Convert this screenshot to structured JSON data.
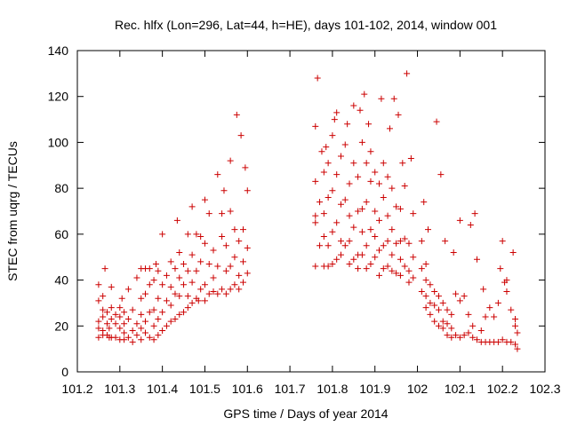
{
  "chart_data": {
    "type": "scatter",
    "title": "Rec. hlfx (Lon=296, Lat=44, h=HE), days 101-102, 2014, window 001",
    "xlabel": "GPS time / Days of year 2014",
    "ylabel": "STEC from uqrg / TECUs",
    "xlim": [
      101.2,
      102.3
    ],
    "ylim": [
      0,
      140
    ],
    "xticks": [
      "101.2",
      "101.3",
      "101.4",
      "101.5",
      "101.6",
      "101.7",
      "101.8",
      "101.9",
      "102",
      "102.1",
      "102.2",
      "102.3"
    ],
    "yticks": [
      "0",
      "20",
      "40",
      "60",
      "80",
      "100",
      "120",
      "140"
    ],
    "grid": false,
    "legend": "none",
    "marker": "+",
    "color": "#cc0000",
    "points": [
      [
        101.25,
        15
      ],
      [
        101.25,
        19
      ],
      [
        101.25,
        22
      ],
      [
        101.25,
        31
      ],
      [
        101.25,
        38
      ],
      [
        101.26,
        16
      ],
      [
        101.26,
        18
      ],
      [
        101.26,
        24
      ],
      [
        101.26,
        27
      ],
      [
        101.26,
        33
      ],
      [
        101.265,
        45
      ],
      [
        101.27,
        16
      ],
      [
        101.27,
        21
      ],
      [
        101.27,
        26
      ],
      [
        101.275,
        15
      ],
      [
        101.275,
        19
      ],
      [
        101.28,
        15
      ],
      [
        101.28,
        23
      ],
      [
        101.28,
        28
      ],
      [
        101.28,
        37
      ],
      [
        101.29,
        15
      ],
      [
        101.29,
        21
      ],
      [
        101.29,
        25
      ],
      [
        101.3,
        14
      ],
      [
        101.3,
        19
      ],
      [
        101.3,
        24
      ],
      [
        101.3,
        28
      ],
      [
        101.305,
        32
      ],
      [
        101.31,
        14
      ],
      [
        101.31,
        17
      ],
      [
        101.31,
        21
      ],
      [
        101.31,
        26
      ],
      [
        101.32,
        15
      ],
      [
        101.32,
        23
      ],
      [
        101.32,
        36
      ],
      [
        101.33,
        13
      ],
      [
        101.33,
        18
      ],
      [
        101.33,
        27
      ],
      [
        101.34,
        16
      ],
      [
        101.34,
        21
      ],
      [
        101.34,
        41
      ],
      [
        101.35,
        14
      ],
      [
        101.35,
        19
      ],
      [
        101.35,
        25
      ],
      [
        101.35,
        32
      ],
      [
        101.35,
        45
      ],
      [
        101.36,
        17
      ],
      [
        101.36,
        22
      ],
      [
        101.36,
        34
      ],
      [
        101.36,
        45
      ],
      [
        101.37,
        15
      ],
      [
        101.37,
        26
      ],
      [
        101.37,
        38
      ],
      [
        101.37,
        45
      ],
      [
        101.38,
        14
      ],
      [
        101.38,
        20
      ],
      [
        101.38,
        27
      ],
      [
        101.38,
        40
      ],
      [
        101.385,
        47
      ],
      [
        101.39,
        16
      ],
      [
        101.39,
        23
      ],
      [
        101.39,
        32
      ],
      [
        101.39,
        44
      ],
      [
        101.4,
        18
      ],
      [
        101.4,
        26
      ],
      [
        101.4,
        38
      ],
      [
        101.4,
        60
      ],
      [
        101.41,
        20
      ],
      [
        101.41,
        31
      ],
      [
        101.41,
        42
      ],
      [
        101.42,
        22
      ],
      [
        101.42,
        29
      ],
      [
        101.42,
        37
      ],
      [
        101.42,
        48
      ],
      [
        101.43,
        23
      ],
      [
        101.43,
        34
      ],
      [
        101.43,
        45
      ],
      [
        101.435,
        66
      ],
      [
        101.44,
        25
      ],
      [
        101.44,
        33
      ],
      [
        101.44,
        41
      ],
      [
        101.44,
        52
      ],
      [
        101.45,
        26
      ],
      [
        101.45,
        38
      ],
      [
        101.45,
        47
      ],
      [
        101.46,
        28
      ],
      [
        101.46,
        33
      ],
      [
        101.46,
        44
      ],
      [
        101.46,
        60
      ],
      [
        101.47,
        30
      ],
      [
        101.47,
        39
      ],
      [
        101.47,
        51
      ],
      [
        101.47,
        72
      ],
      [
        101.48,
        32
      ],
      [
        101.48,
        44
      ],
      [
        101.48,
        60
      ],
      [
        101.485,
        31
      ],
      [
        101.49,
        36
      ],
      [
        101.49,
        48
      ],
      [
        101.49,
        59
      ],
      [
        101.5,
        31
      ],
      [
        101.5,
        38
      ],
      [
        101.5,
        56
      ],
      [
        101.5,
        75
      ],
      [
        101.51,
        34
      ],
      [
        101.51,
        47
      ],
      [
        101.51,
        69
      ],
      [
        101.52,
        35
      ],
      [
        101.52,
        41
      ],
      [
        101.52,
        53
      ],
      [
        101.53,
        34
      ],
      [
        101.53,
        46
      ],
      [
        101.53,
        86
      ],
      [
        101.54,
        36
      ],
      [
        101.54,
        59
      ],
      [
        101.54,
        69
      ],
      [
        101.545,
        79
      ],
      [
        101.55,
        34
      ],
      [
        101.55,
        44
      ],
      [
        101.55,
        55
      ],
      [
        101.56,
        36
      ],
      [
        101.56,
        46
      ],
      [
        101.56,
        70
      ],
      [
        101.56,
        92
      ],
      [
        101.57,
        38
      ],
      [
        101.57,
        50
      ],
      [
        101.57,
        62
      ],
      [
        101.575,
        112
      ],
      [
        101.58,
        36
      ],
      [
        101.58,
        42
      ],
      [
        101.58,
        57
      ],
      [
        101.585,
        103
      ],
      [
        101.59,
        39
      ],
      [
        101.59,
        48
      ],
      [
        101.59,
        62
      ],
      [
        101.595,
        89
      ],
      [
        101.6,
        43
      ],
      [
        101.6,
        54
      ],
      [
        101.6,
        79
      ],
      [
        101.76,
        46
      ],
      [
        101.76,
        65
      ],
      [
        101.76,
        68
      ],
      [
        101.76,
        83
      ],
      [
        101.76,
        107
      ],
      [
        101.765,
        128
      ],
      [
        101.77,
        55
      ],
      [
        101.77,
        74
      ],
      [
        101.775,
        96
      ],
      [
        101.78,
        46
      ],
      [
        101.78,
        59
      ],
      [
        101.78,
        69
      ],
      [
        101.78,
        87
      ],
      [
        101.785,
        98
      ],
      [
        101.79,
        46
      ],
      [
        101.79,
        55
      ],
      [
        101.79,
        76
      ],
      [
        101.79,
        91
      ],
      [
        101.8,
        47
      ],
      [
        101.8,
        61
      ],
      [
        101.8,
        79
      ],
      [
        101.8,
        103
      ],
      [
        101.805,
        110
      ],
      [
        101.81,
        49
      ],
      [
        101.81,
        65
      ],
      [
        101.81,
        86
      ],
      [
        101.81,
        113
      ],
      [
        101.82,
        51
      ],
      [
        101.82,
        57
      ],
      [
        101.82,
        73
      ],
      [
        101.82,
        94
      ],
      [
        101.83,
        55
      ],
      [
        101.83,
        75
      ],
      [
        101.83,
        99
      ],
      [
        101.835,
        108
      ],
      [
        101.84,
        47
      ],
      [
        101.84,
        57
      ],
      [
        101.84,
        68
      ],
      [
        101.84,
        82
      ],
      [
        101.85,
        49
      ],
      [
        101.85,
        63
      ],
      [
        101.85,
        91
      ],
      [
        101.85,
        116
      ],
      [
        101.86,
        45
      ],
      [
        101.86,
        51
      ],
      [
        101.86,
        70
      ],
      [
        101.86,
        85
      ],
      [
        101.865,
        114
      ],
      [
        101.87,
        51
      ],
      [
        101.87,
        61
      ],
      [
        101.87,
        71
      ],
      [
        101.87,
        100
      ],
      [
        101.875,
        121
      ],
      [
        101.88,
        45
      ],
      [
        101.88,
        55
      ],
      [
        101.88,
        74
      ],
      [
        101.88,
        91
      ],
      [
        101.885,
        108
      ],
      [
        101.89,
        47
      ],
      [
        101.89,
        62
      ],
      [
        101.89,
        83
      ],
      [
        101.89,
        96
      ],
      [
        101.9,
        50
      ],
      [
        101.9,
        59
      ],
      [
        101.9,
        70
      ],
      [
        101.9,
        87
      ],
      [
        101.91,
        42
      ],
      [
        101.91,
        53
      ],
      [
        101.91,
        66
      ],
      [
        101.91,
        82
      ],
      [
        101.915,
        119
      ],
      [
        101.92,
        45
      ],
      [
        101.92,
        55
      ],
      [
        101.92,
        76
      ],
      [
        101.92,
        91
      ],
      [
        101.93,
        46
      ],
      [
        101.93,
        57
      ],
      [
        101.93,
        68
      ],
      [
        101.93,
        85
      ],
      [
        101.935,
        106
      ],
      [
        101.94,
        44
      ],
      [
        101.94,
        51
      ],
      [
        101.94,
        62
      ],
      [
        101.94,
        80
      ],
      [
        101.945,
        119
      ],
      [
        101.95,
        43
      ],
      [
        101.95,
        56
      ],
      [
        101.95,
        72
      ],
      [
        101.955,
        112
      ],
      [
        101.96,
        42
      ],
      [
        101.96,
        49
      ],
      [
        101.96,
        57
      ],
      [
        101.96,
        71
      ],
      [
        101.965,
        91
      ],
      [
        101.97,
        46
      ],
      [
        101.97,
        58
      ],
      [
        101.97,
        81
      ],
      [
        101.975,
        130
      ],
      [
        101.98,
        39
      ],
      [
        101.98,
        44
      ],
      [
        101.98,
        56
      ],
      [
        101.985,
        93
      ],
      [
        101.99,
        41
      ],
      [
        101.99,
        50
      ],
      [
        101.99,
        69
      ],
      [
        102.01,
        35
      ],
      [
        102.01,
        45
      ],
      [
        102.01,
        57
      ],
      [
        102.015,
        74
      ],
      [
        102.02,
        28
      ],
      [
        102.02,
        33
      ],
      [
        102.02,
        40
      ],
      [
        102.02,
        47
      ],
      [
        102.025,
        62
      ],
      [
        102.03,
        25
      ],
      [
        102.03,
        30
      ],
      [
        102.03,
        38
      ],
      [
        102.04,
        22
      ],
      [
        102.04,
        29
      ],
      [
        102.04,
        35
      ],
      [
        102.045,
        109
      ],
      [
        102.05,
        20
      ],
      [
        102.05,
        27
      ],
      [
        102.05,
        33
      ],
      [
        102.055,
        86
      ],
      [
        102.06,
        19
      ],
      [
        102.06,
        22
      ],
      [
        102.06,
        30
      ],
      [
        102.065,
        57
      ],
      [
        102.07,
        16
      ],
      [
        102.07,
        21
      ],
      [
        102.07,
        27
      ],
      [
        102.08,
        15
      ],
      [
        102.08,
        19
      ],
      [
        102.08,
        25
      ],
      [
        102.085,
        52
      ],
      [
        102.09,
        16
      ],
      [
        102.09,
        34
      ],
      [
        102.1,
        15
      ],
      [
        102.1,
        31
      ],
      [
        102.1,
        66
      ],
      [
        102.11,
        16
      ],
      [
        102.11,
        33
      ],
      [
        102.12,
        17
      ],
      [
        102.12,
        25
      ],
      [
        102.125,
        64
      ],
      [
        102.13,
        15
      ],
      [
        102.13,
        20
      ],
      [
        102.135,
        69
      ],
      [
        102.14,
        14
      ],
      [
        102.14,
        49
      ],
      [
        102.15,
        13
      ],
      [
        102.15,
        18
      ],
      [
        102.155,
        36
      ],
      [
        102.16,
        13
      ],
      [
        102.16,
        24
      ],
      [
        102.17,
        13
      ],
      [
        102.17,
        28
      ],
      [
        102.18,
        13
      ],
      [
        102.18,
        24
      ],
      [
        102.19,
        13
      ],
      [
        102.19,
        30
      ],
      [
        102.195,
        45
      ],
      [
        102.2,
        14
      ],
      [
        102.2,
        57
      ],
      [
        102.205,
        39
      ],
      [
        102.21,
        13
      ],
      [
        102.21,
        35
      ],
      [
        102.21,
        40
      ],
      [
        102.22,
        13
      ],
      [
        102.22,
        27
      ],
      [
        102.225,
        52
      ],
      [
        102.23,
        12
      ],
      [
        102.23,
        20
      ],
      [
        102.23,
        23
      ],
      [
        102.235,
        10
      ],
      [
        102.235,
        17
      ]
    ]
  }
}
